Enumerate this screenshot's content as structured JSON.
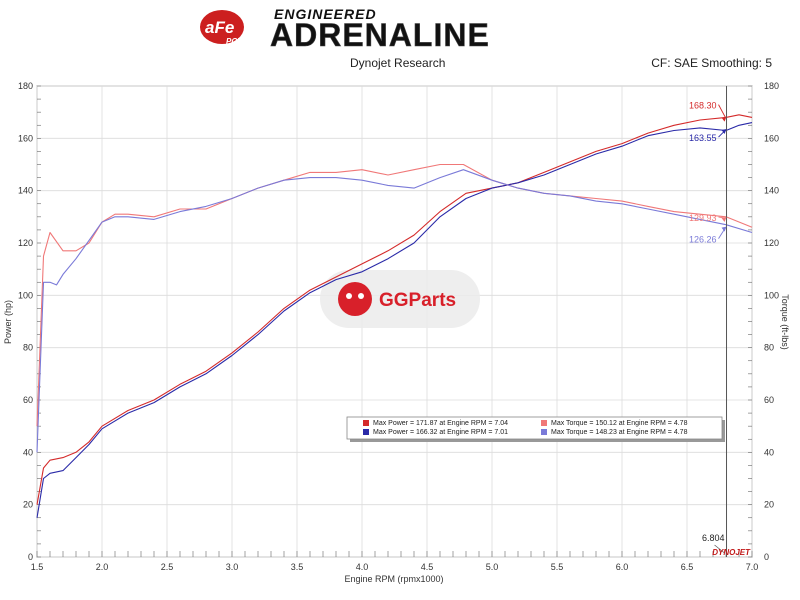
{
  "header": {
    "logo_text": "aFe",
    "logo_sub": "POWER",
    "brand_line1": "ENGINEERED",
    "brand_line2": "ADRENALINE",
    "subtitle": "Dynojet Research",
    "info_right": "CF: SAE Smoothing: 5"
  },
  "watermark": {
    "text": "GGParts"
  },
  "footer_logo": "DYNOJET",
  "cursor": {
    "x": 6.804,
    "label": "6.804",
    "readouts": [
      {
        "value": "168.30",
        "y": 168.3,
        "color": "#d42a2a"
      },
      {
        "value": "163.55",
        "y": 163.55,
        "color": "#2a2aa8"
      },
      {
        "value": "129.93",
        "y": 129.93,
        "color": "#f07878"
      },
      {
        "value": "126.26",
        "y": 126.26,
        "color": "#7a7ad8"
      }
    ]
  },
  "legend": {
    "items": [
      {
        "label": "Max Power = 171.87 at Engine RPM = 7.04",
        "color": "#d42a2a"
      },
      {
        "label": "Max Torque = 150.12 at Engine RPM = 4.78",
        "color": "#f07878"
      },
      {
        "label": "Max Power = 166.32 at Engine RPM = 7.01",
        "color": "#2a2aa8"
      },
      {
        "label": "Max Torque = 148.23 at Engine RPM = 4.78",
        "color": "#7a7ad8"
      }
    ]
  },
  "chart_data": {
    "type": "line",
    "xlabel": "Engine RPM (rpmx1000)",
    "ylabel_left": "Power (hp)",
    "ylabel_right": "Torque (ft-lbs)",
    "xlim": [
      1.5,
      7.0
    ],
    "ylim": [
      0,
      180
    ],
    "x_ticks": [
      "1.5",
      "2.0",
      "2.5",
      "3.0",
      "3.5",
      "4.0",
      "4.5",
      "5.0",
      "5.5",
      "6.0",
      "6.5",
      "7.0"
    ],
    "y_ticks": [
      "0",
      "20",
      "40",
      "60",
      "80",
      "100",
      "120",
      "140",
      "160",
      "180"
    ],
    "grid": true,
    "legend_position": "lower-right",
    "series": [
      {
        "color": "#d42a2a",
        "points": [
          [
            1.5,
            20
          ],
          [
            1.55,
            34
          ],
          [
            1.6,
            37
          ],
          [
            1.7,
            38
          ],
          [
            1.8,
            40
          ],
          [
            1.9,
            44
          ],
          [
            2.0,
            50
          ],
          [
            2.2,
            56
          ],
          [
            2.4,
            60
          ],
          [
            2.6,
            66
          ],
          [
            2.8,
            71
          ],
          [
            3.0,
            78
          ],
          [
            3.2,
            86
          ],
          [
            3.4,
            95
          ],
          [
            3.6,
            102
          ],
          [
            3.8,
            107
          ],
          [
            4.0,
            112
          ],
          [
            4.2,
            117
          ],
          [
            4.4,
            123
          ],
          [
            4.6,
            132
          ],
          [
            4.8,
            139
          ],
          [
            5.0,
            141
          ],
          [
            5.2,
            143
          ],
          [
            5.4,
            147
          ],
          [
            5.6,
            151
          ],
          [
            5.8,
            155
          ],
          [
            6.0,
            158
          ],
          [
            6.2,
            162
          ],
          [
            6.4,
            165
          ],
          [
            6.6,
            167
          ],
          [
            6.8,
            168
          ],
          [
            6.9,
            169
          ],
          [
            7.0,
            168
          ]
        ]
      },
      {
        "color": "#2a2aa8",
        "points": [
          [
            1.5,
            15
          ],
          [
            1.55,
            30
          ],
          [
            1.6,
            32
          ],
          [
            1.7,
            33
          ],
          [
            1.8,
            38
          ],
          [
            1.9,
            43
          ],
          [
            2.0,
            49
          ],
          [
            2.2,
            55
          ],
          [
            2.4,
            59
          ],
          [
            2.6,
            65
          ],
          [
            2.8,
            70
          ],
          [
            3.0,
            77
          ],
          [
            3.2,
            85
          ],
          [
            3.4,
            94
          ],
          [
            3.6,
            101
          ],
          [
            3.8,
            106
          ],
          [
            4.0,
            109
          ],
          [
            4.2,
            114
          ],
          [
            4.4,
            120
          ],
          [
            4.6,
            130
          ],
          [
            4.8,
            137
          ],
          [
            5.0,
            141
          ],
          [
            5.2,
            143
          ],
          [
            5.4,
            146
          ],
          [
            5.6,
            150
          ],
          [
            5.8,
            154
          ],
          [
            6.0,
            157
          ],
          [
            6.2,
            161
          ],
          [
            6.4,
            163
          ],
          [
            6.6,
            164
          ],
          [
            6.8,
            163
          ],
          [
            6.9,
            165
          ],
          [
            7.0,
            166
          ]
        ]
      },
      {
        "color": "#f07878",
        "points": [
          [
            1.5,
            50
          ],
          [
            1.55,
            115
          ],
          [
            1.6,
            124
          ],
          [
            1.7,
            117
          ],
          [
            1.8,
            117
          ],
          [
            1.9,
            120
          ],
          [
            2.0,
            128
          ],
          [
            2.1,
            131
          ],
          [
            2.2,
            131
          ],
          [
            2.4,
            130
          ],
          [
            2.6,
            133
          ],
          [
            2.8,
            133
          ],
          [
            3.0,
            137
          ],
          [
            3.2,
            141
          ],
          [
            3.4,
            144
          ],
          [
            3.6,
            147
          ],
          [
            3.8,
            147
          ],
          [
            4.0,
            148
          ],
          [
            4.2,
            146
          ],
          [
            4.4,
            148
          ],
          [
            4.6,
            150
          ],
          [
            4.78,
            150
          ],
          [
            5.0,
            144
          ],
          [
            5.2,
            141
          ],
          [
            5.4,
            139
          ],
          [
            5.6,
            138
          ],
          [
            5.8,
            137
          ],
          [
            6.0,
            136
          ],
          [
            6.2,
            134
          ],
          [
            6.4,
            132
          ],
          [
            6.6,
            131
          ],
          [
            6.8,
            130
          ],
          [
            7.0,
            126
          ]
        ]
      },
      {
        "color": "#7a7ad8",
        "points": [
          [
            1.5,
            40
          ],
          [
            1.55,
            105
          ],
          [
            1.6,
            105
          ],
          [
            1.65,
            104
          ],
          [
            1.7,
            108
          ],
          [
            1.8,
            114
          ],
          [
            1.9,
            121
          ],
          [
            2.0,
            128
          ],
          [
            2.1,
            130
          ],
          [
            2.2,
            130
          ],
          [
            2.4,
            129
          ],
          [
            2.6,
            132
          ],
          [
            2.8,
            134
          ],
          [
            3.0,
            137
          ],
          [
            3.2,
            141
          ],
          [
            3.4,
            144
          ],
          [
            3.6,
            145
          ],
          [
            3.8,
            145
          ],
          [
            4.0,
            144
          ],
          [
            4.2,
            142
          ],
          [
            4.4,
            141
          ],
          [
            4.6,
            145
          ],
          [
            4.78,
            148
          ],
          [
            5.0,
            144
          ],
          [
            5.2,
            141
          ],
          [
            5.4,
            139
          ],
          [
            5.6,
            138
          ],
          [
            5.8,
            136
          ],
          [
            6.0,
            135
          ],
          [
            6.2,
            133
          ],
          [
            6.4,
            131
          ],
          [
            6.6,
            129
          ],
          [
            6.8,
            127
          ],
          [
            7.0,
            124
          ]
        ]
      }
    ]
  }
}
